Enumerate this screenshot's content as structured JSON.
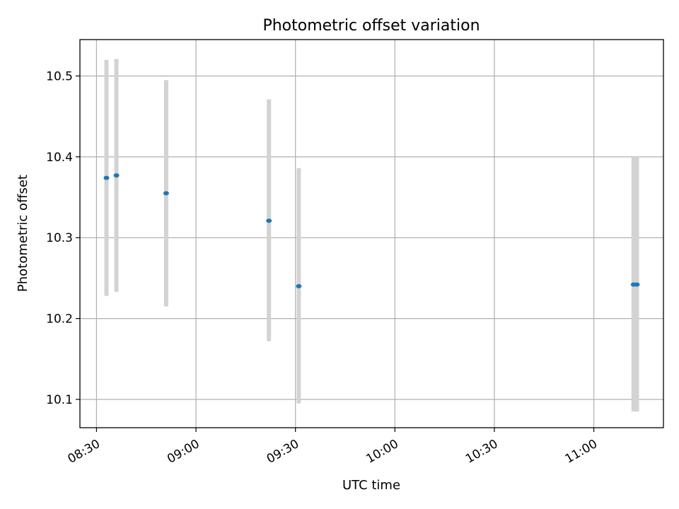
{
  "chart_data": {
    "type": "scatter",
    "title": "Photometric offset variation",
    "xlabel": "UTC time",
    "ylabel": "Photometric offset",
    "x_unit": "UTC time (HH:MM)",
    "xlim": [
      "08:25",
      "11:21"
    ],
    "ylim": [
      10.065,
      10.545
    ],
    "grid": true,
    "legend": false,
    "marker_color": "#1f77b4",
    "errorbar_color": "#d3d3d3",
    "x_ticks": [
      "08:30",
      "09:00",
      "09:30",
      "10:00",
      "10:30",
      "11:00"
    ],
    "y_ticks": [
      10.1,
      10.2,
      10.3,
      10.4,
      10.5
    ],
    "points": [
      {
        "x": "08:33",
        "y": 10.374,
        "err_low": 10.228,
        "err_high": 10.52
      },
      {
        "x": "08:36",
        "y": 10.377,
        "err_low": 10.233,
        "err_high": 10.521
      },
      {
        "x": "08:51",
        "y": 10.355,
        "err_low": 10.215,
        "err_high": 10.495
      },
      {
        "x": "09:22",
        "y": 10.321,
        "err_low": 10.172,
        "err_high": 10.471
      },
      {
        "x": "09:31",
        "y": 10.24,
        "err_low": 10.095,
        "err_high": 10.386
      },
      {
        "x": "11:12",
        "y": 10.242,
        "err_low": 10.085,
        "err_high": 10.4
      },
      {
        "x": "11:13",
        "y": 10.242,
        "err_low": 10.085,
        "err_high": 10.4
      }
    ]
  }
}
